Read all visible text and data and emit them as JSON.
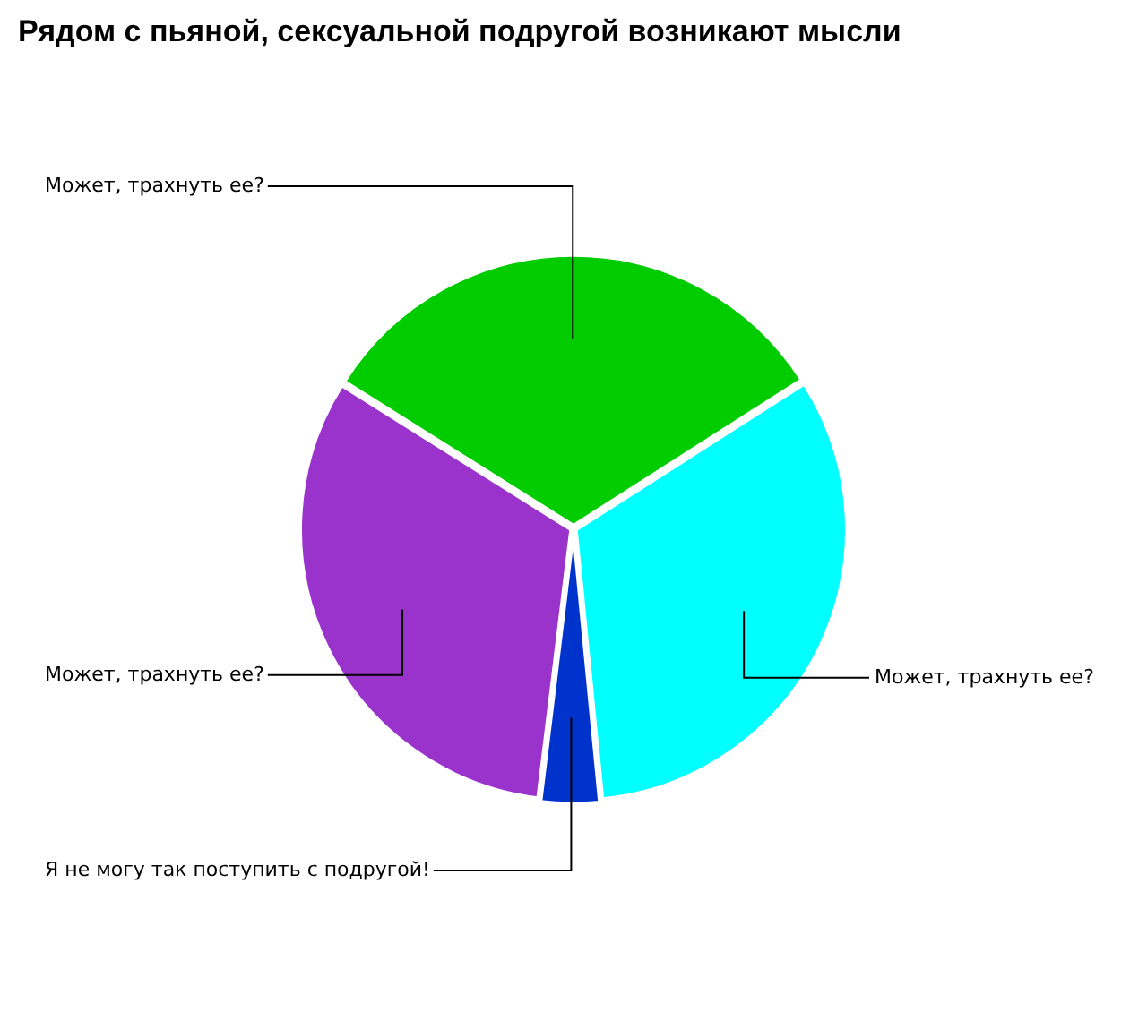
{
  "chart_data": {
    "type": "pie",
    "title": "Рядом с пьяной, сексуальной подругой возникают мысли",
    "categories": [
      "Может, трахнуть ее?",
      "Может, трахнуть ее?",
      "Я не могу так поступить с подругой!",
      "Может, трахнуть ее?"
    ],
    "values": [
      32,
      32.5,
      3.5,
      32
    ],
    "colors": [
      "#00cc00",
      "#00ffff",
      "#0033cc",
      "#9933cc"
    ],
    "legend": false
  }
}
